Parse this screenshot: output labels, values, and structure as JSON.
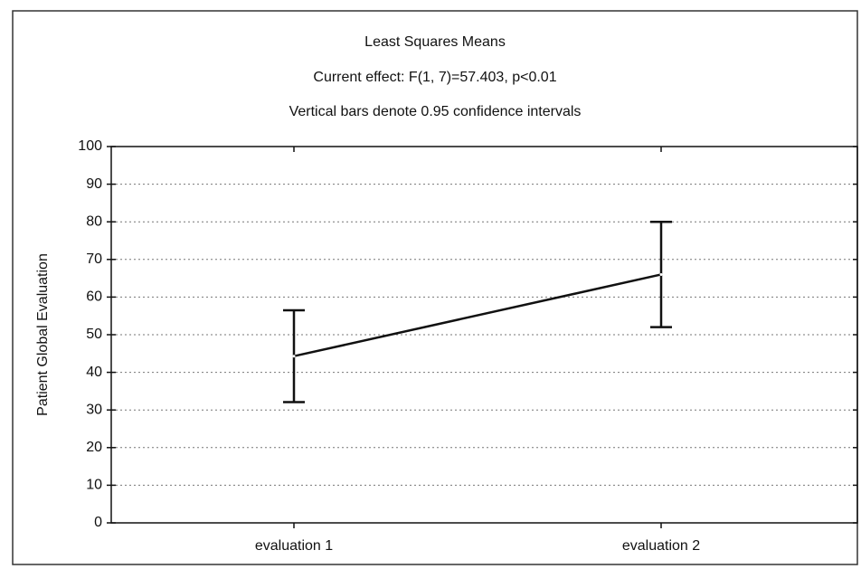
{
  "chart_data": {
    "type": "line",
    "title": "Least Squares Means",
    "subtitle": "Current effect: F(1, 7)=57.403, p<0.01",
    "annotation": "Vertical bars denote 0.95 confidence intervals",
    "y_label": "Patient Global Evaluation",
    "categories": [
      "evaluation 1",
      "evaluation 2"
    ],
    "series": [
      {
        "name": "Patient Global Evaluation",
        "color": "#111111",
        "values": [
          44.3,
          66
        ],
        "errors": [
          12.2,
          14
        ]
      }
    ],
    "ylim": [
      0,
      100
    ],
    "yticks": [
      0,
      10,
      20,
      30,
      40,
      50,
      60,
      70,
      80,
      90,
      100
    ],
    "grid": true
  }
}
